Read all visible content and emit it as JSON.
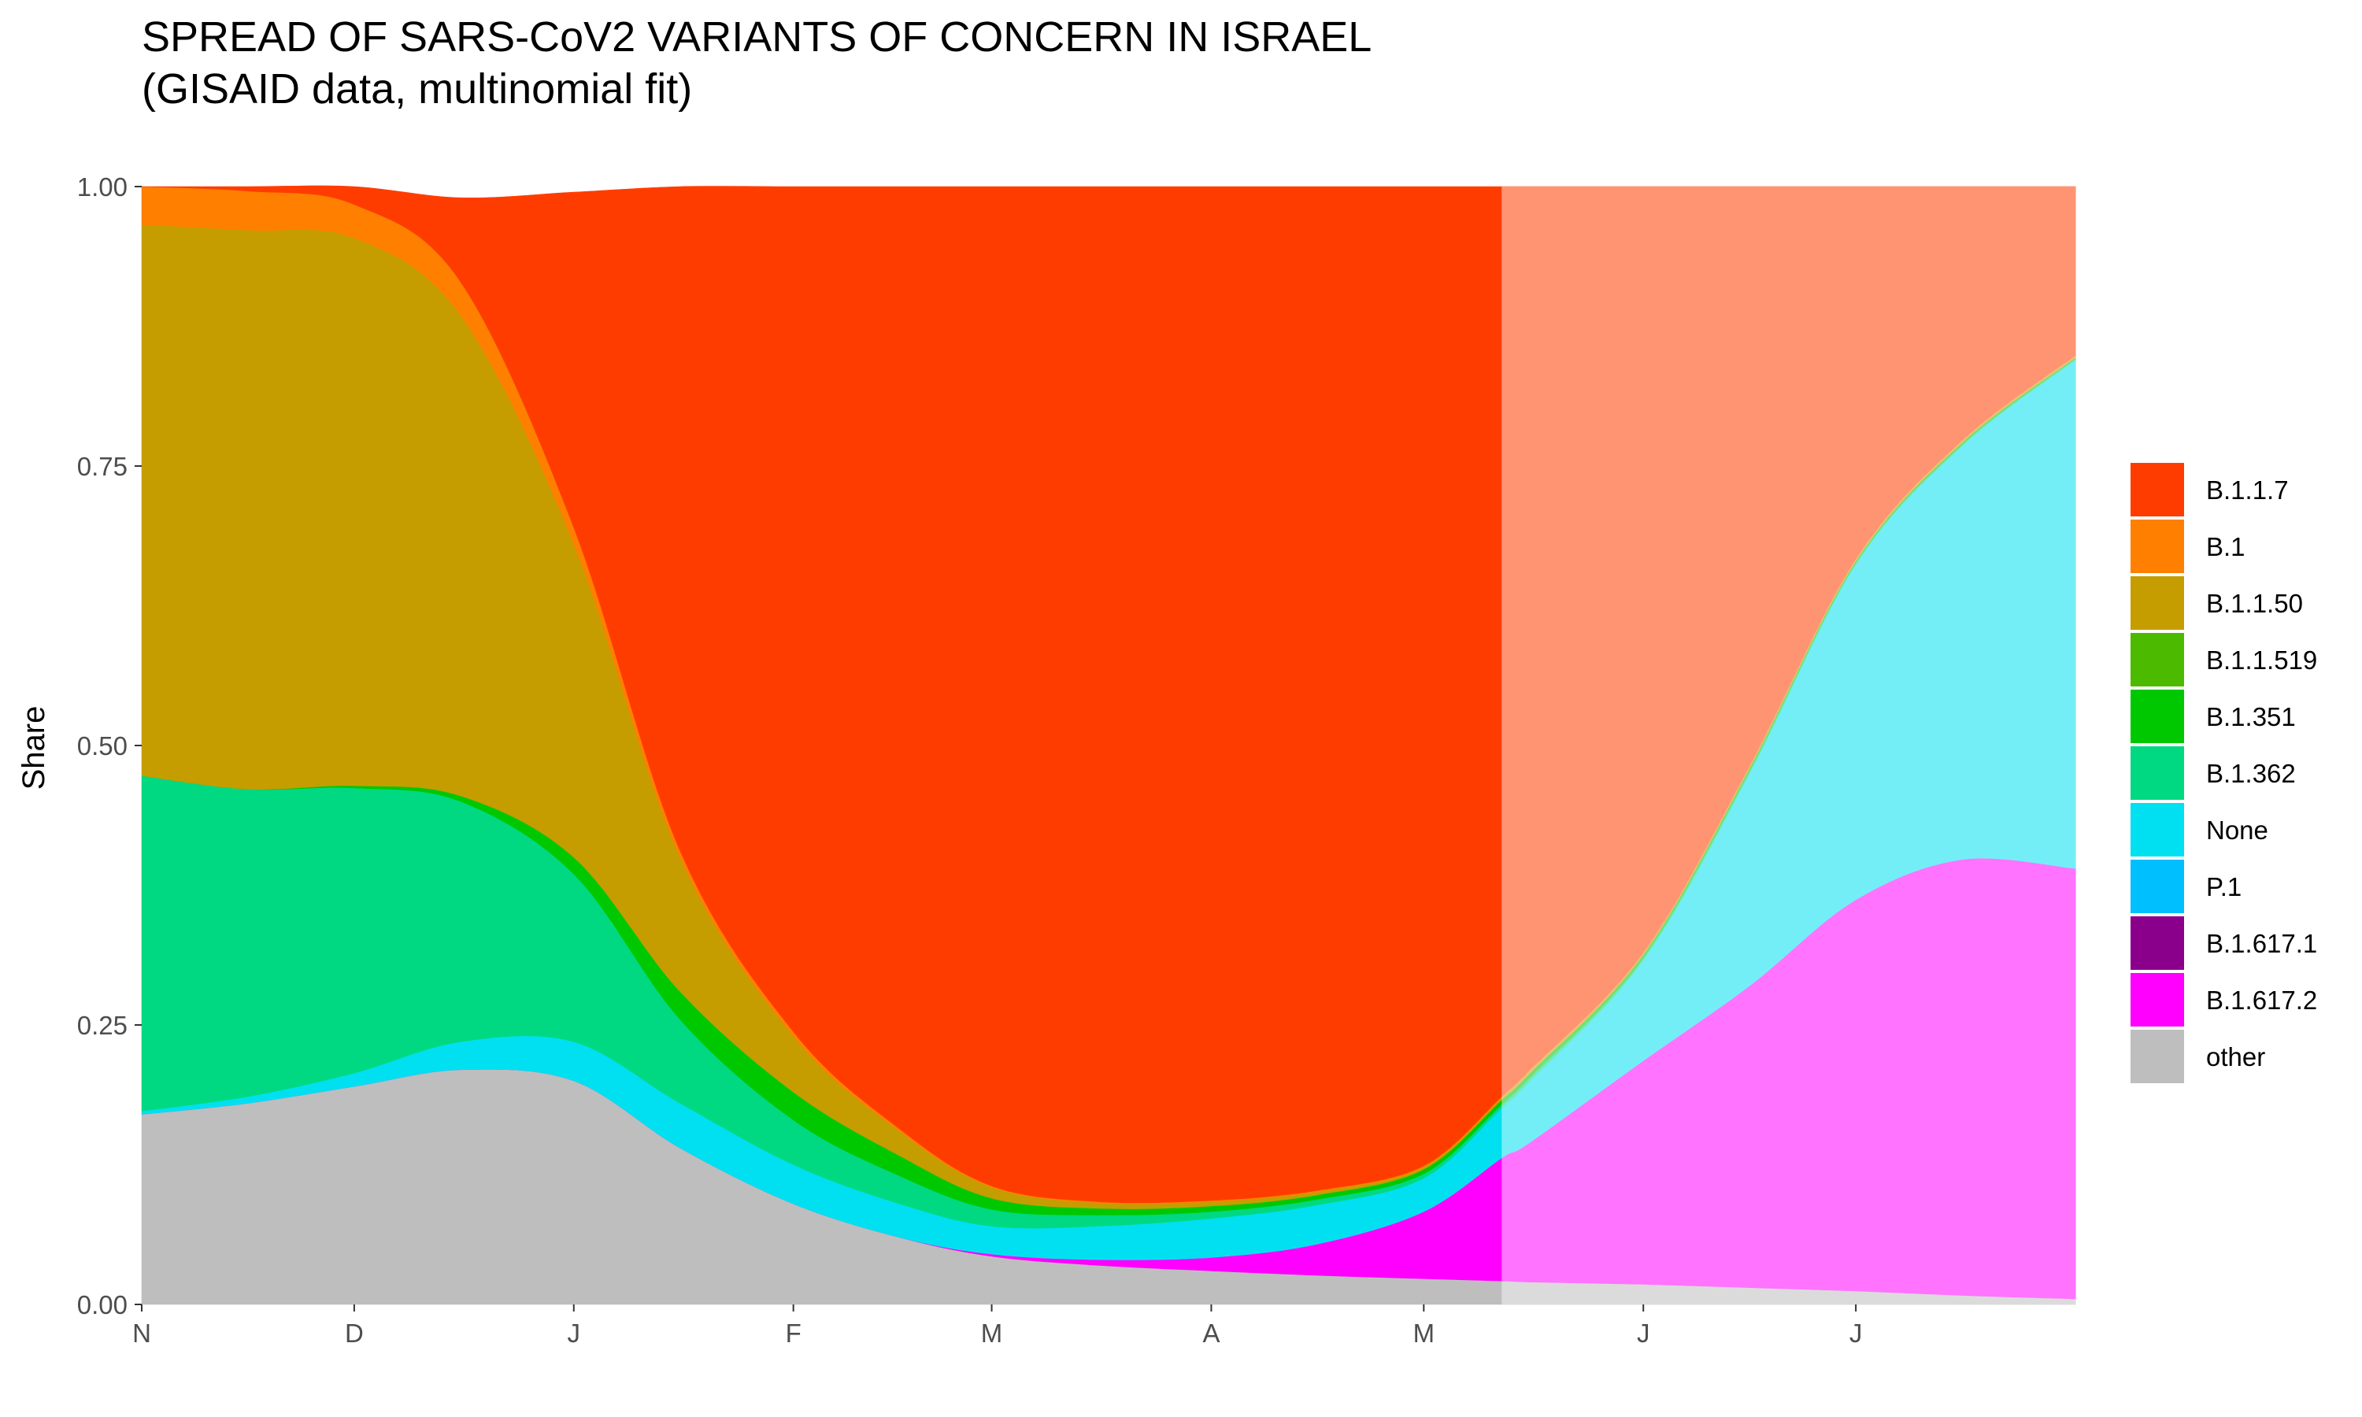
{
  "chart_data": {
    "type": "area",
    "title": "SPREAD OF SARS-CoV2 VARIANTS OF CONCERN IN ISRAEL",
    "subtitle": "(GISAID data, multinomial fit)",
    "xlabel": "",
    "ylabel": "Share",
    "ylim": [
      0,
      1
    ],
    "y_ticks": [
      "0.00",
      "0.25",
      "0.50",
      "0.75",
      "1.00"
    ],
    "x_ticks": [
      {
        "date": "2020-11-01",
        "label": "N"
      },
      {
        "date": "2020-12-01",
        "label": "D"
      },
      {
        "date": "2021-01-01",
        "label": "J"
      },
      {
        "date": "2021-02-01",
        "label": "F"
      },
      {
        "date": "2021-03-01",
        "label": "M"
      },
      {
        "date": "2021-04-01",
        "label": "A"
      },
      {
        "date": "2021-05-01",
        "label": "M"
      },
      {
        "date": "2021-06-01",
        "label": "J"
      },
      {
        "date": "2021-07-01",
        "label": "J"
      }
    ],
    "x_range": [
      "2020-11-01",
      "2021-08-01"
    ],
    "forecast_start": "2021-05-12",
    "grid": false,
    "legend_position": "right",
    "dates": [
      "2020-11-01",
      "2020-11-16",
      "2020-12-01",
      "2020-12-16",
      "2021-01-01",
      "2021-01-16",
      "2021-02-01",
      "2021-02-16",
      "2021-03-01",
      "2021-03-16",
      "2021-04-01",
      "2021-04-16",
      "2021-05-01",
      "2021-05-12",
      "2021-05-16",
      "2021-06-01",
      "2021-06-16",
      "2021-07-01",
      "2021-07-16",
      "2021-08-01"
    ],
    "series": [
      {
        "name": "other",
        "color": "#bebebe",
        "values": [
          0.17,
          0.18,
          0.195,
          0.21,
          0.2,
          0.14,
          0.09,
          0.06,
          0.043,
          0.035,
          0.03,
          0.026,
          0.023,
          0.021,
          0.02,
          0.018,
          0.015,
          0.012,
          0.008,
          0.005
        ]
      },
      {
        "name": "B.1.617.2",
        "color": "#ff00ff",
        "values": [
          0,
          0,
          0,
          0,
          0,
          0,
          0,
          0,
          0.002,
          0.005,
          0.012,
          0.028,
          0.06,
          0.11,
          0.125,
          0.2,
          0.27,
          0.35,
          0.39,
          0.385
        ]
      },
      {
        "name": "B.1.617.1",
        "color": "#8b008b",
        "values": [
          0,
          0,
          0,
          0,
          0,
          0,
          0,
          0,
          0,
          0,
          0,
          0,
          0,
          0,
          0,
          0,
          0,
          0,
          0,
          0
        ]
      },
      {
        "name": "P.1",
        "color": "#00bfff",
        "values": [
          0,
          0,
          0,
          0,
          0,
          0,
          0,
          0,
          0,
          0,
          0,
          0,
          0,
          0,
          0,
          0,
          0,
          0,
          0,
          0
        ]
      },
      {
        "name": "None",
        "color": "#00e0f0",
        "values": [
          0.003,
          0.006,
          0.012,
          0.025,
          0.035,
          0.04,
          0.035,
          0.03,
          0.025,
          0.03,
          0.035,
          0.035,
          0.03,
          0.045,
          0.055,
          0.09,
          0.19,
          0.3,
          0.37,
          0.455
        ]
      },
      {
        "name": "B.1.362",
        "color": "#00d982",
        "values": [
          0.3,
          0.275,
          0.255,
          0.215,
          0.15,
          0.075,
          0.04,
          0.025,
          0.015,
          0.01,
          0.006,
          0.005,
          0.004,
          0.003,
          0.003,
          0.002,
          0.002,
          0.001,
          0.001,
          0.001
        ]
      },
      {
        "name": "B.1.351",
        "color": "#00c800",
        "values": [
          0,
          0,
          0.002,
          0.005,
          0.015,
          0.025,
          0.025,
          0.018,
          0.01,
          0.006,
          0.005,
          0.004,
          0.004,
          0.004,
          0.004,
          0.003,
          0.003,
          0.002,
          0.002,
          0.001
        ]
      },
      {
        "name": "B.1.1.519",
        "color": "#4cbb00",
        "values": [
          0,
          0,
          0,
          0,
          0,
          0,
          0,
          0,
          0,
          0,
          0,
          0,
          0,
          0,
          0,
          0,
          0,
          0,
          0,
          0
        ]
      },
      {
        "name": "B.1.1.50",
        "color": "#c59d00",
        "values": [
          0.493,
          0.5,
          0.49,
          0.43,
          0.28,
          0.12,
          0.05,
          0.022,
          0.01,
          0.005,
          0.004,
          0.003,
          0.002,
          0.002,
          0.002,
          0.001,
          0.001,
          0.001,
          0.001,
          0.001
        ]
      },
      {
        "name": "B.1",
        "color": "#ff7f00",
        "values": [
          0.034,
          0.035,
          0.03,
          0.03,
          0.015,
          0.006,
          0.004,
          0.002,
          0.001,
          0.001,
          0.001,
          0.001,
          0.001,
          0.001,
          0.001,
          0.001,
          0.001,
          0.001,
          0.001,
          0.001
        ]
      },
      {
        "name": "B.1.1.7",
        "color": "#ff3c00",
        "values": [
          0,
          0.004,
          0.016,
          0.075,
          0.3,
          0.594,
          0.756,
          0.843,
          0.894,
          0.908,
          0.907,
          0.898,
          0.876,
          0.814,
          0.79,
          0.685,
          0.518,
          0.333,
          0.227,
          0.151
        ]
      }
    ],
    "legend": [
      {
        "name": "B.1.1.7",
        "color": "#ff3c00"
      },
      {
        "name": "B.1",
        "color": "#ff7f00"
      },
      {
        "name": "B.1.1.50",
        "color": "#c59d00"
      },
      {
        "name": "B.1.1.519",
        "color": "#4cbb00"
      },
      {
        "name": "B.1.351",
        "color": "#00c800"
      },
      {
        "name": "B.1.362",
        "color": "#00d982"
      },
      {
        "name": "None",
        "color": "#00e0f0"
      },
      {
        "name": "P.1",
        "color": "#00bfff"
      },
      {
        "name": "B.1.617.1",
        "color": "#8b008b"
      },
      {
        "name": "B.1.617.2",
        "color": "#ff00ff"
      },
      {
        "name": "other",
        "color": "#bebebe"
      }
    ]
  }
}
